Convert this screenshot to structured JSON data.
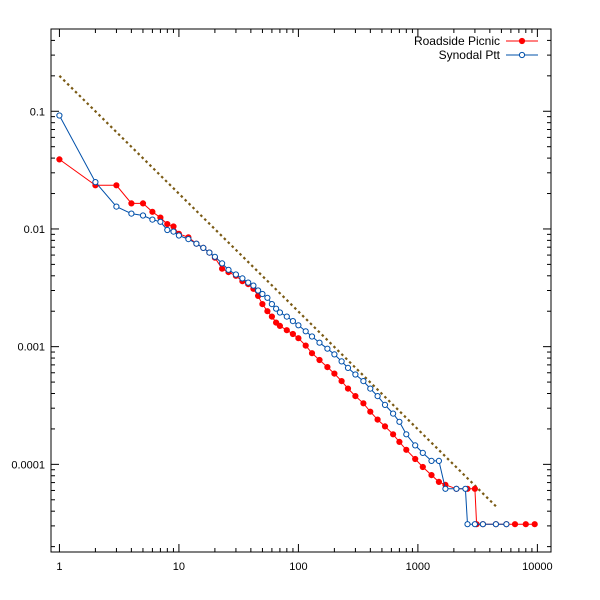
{
  "chart_data": {
    "type": "line",
    "x_scale": "log",
    "y_scale": "log",
    "xlim": [
      0.85,
      13000
    ],
    "ylim": [
      1.8e-05,
      0.5
    ],
    "x_ticks": [
      {
        "value": 1,
        "label": "1"
      },
      {
        "value": 10,
        "label": "10"
      },
      {
        "value": 100,
        "label": "100"
      },
      {
        "value": 1000,
        "label": "1000"
      },
      {
        "value": 10000,
        "label": "10000"
      }
    ],
    "y_ticks": [
      {
        "value": 0.0001,
        "label": "0.0001"
      },
      {
        "value": 0.001,
        "label": "0.001"
      },
      {
        "value": 0.01,
        "label": "0.01"
      },
      {
        "value": 0.1,
        "label": "0.1"
      }
    ],
    "legend": {
      "placement": "top-right"
    },
    "reference_line": {
      "style": "dotted",
      "color": "#7a5a14",
      "points": [
        [
          1,
          0.2
        ],
        [
          4500,
          4.4e-05
        ]
      ]
    },
    "series": [
      {
        "name": "Roadside Picnic",
        "color": "#ff0000",
        "marker": "filled-circle",
        "points": [
          [
            1,
            0.039
          ],
          [
            2,
            0.0235
          ],
          [
            3,
            0.0235
          ],
          [
            4,
            0.0165
          ],
          [
            5,
            0.0165
          ],
          [
            6,
            0.014
          ],
          [
            7,
            0.0125
          ],
          [
            8,
            0.011
          ],
          [
            9,
            0.0105
          ],
          [
            10,
            0.0091
          ],
          [
            12,
            0.0085
          ],
          [
            14,
            0.0075
          ],
          [
            16,
            0.0069
          ],
          [
            18,
            0.0063
          ],
          [
            20,
            0.0057
          ],
          [
            23,
            0.0046
          ],
          [
            26,
            0.0043
          ],
          [
            30,
            0.004
          ],
          [
            34,
            0.0036
          ],
          [
            38,
            0.0034
          ],
          [
            42,
            0.0031
          ],
          [
            46,
            0.0027
          ],
          [
            50,
            0.0023
          ],
          [
            55,
            0.002
          ],
          [
            60,
            0.0018
          ],
          [
            65,
            0.0016
          ],
          [
            70,
            0.0015
          ],
          [
            80,
            0.00138
          ],
          [
            90,
            0.00128
          ],
          [
            100,
            0.00118
          ],
          [
            115,
            0.00102
          ],
          [
            130,
            0.00088
          ],
          [
            150,
            0.00077
          ],
          [
            175,
            0.00067
          ],
          [
            200,
            0.00059
          ],
          [
            230,
            0.00051
          ],
          [
            260,
            0.00044
          ],
          [
            300,
            0.00038
          ],
          [
            350,
            0.00033
          ],
          [
            400,
            0.00028
          ],
          [
            460,
            0.00024
          ],
          [
            530,
            0.00021
          ],
          [
            620,
            0.00018
          ],
          [
            700,
            0.000155
          ],
          [
            800,
            0.000133
          ],
          [
            950,
            0.000111
          ],
          [
            1100,
            9.5e-05
          ],
          [
            1300,
            8.1e-05
          ],
          [
            1500,
            7.1e-05
          ],
          [
            1700,
            6.7e-05
          ],
          [
            2100,
            6.2e-05
          ],
          [
            2600,
            6.2e-05
          ],
          [
            3000,
            6.2e-05
          ],
          [
            3100,
            3.1e-05
          ],
          [
            3500,
            3.1e-05
          ],
          [
            4500,
            3.1e-05
          ],
          [
            5500,
            3.1e-05
          ],
          [
            6500,
            3.1e-05
          ],
          [
            8000,
            3.1e-05
          ],
          [
            9500,
            3.1e-05
          ]
        ]
      },
      {
        "name": "Synodal Ptt",
        "color": "#0050aa",
        "marker": "open-circle",
        "points": [
          [
            1,
            0.092
          ],
          [
            2,
            0.025
          ],
          [
            3,
            0.0155
          ],
          [
            4,
            0.0135
          ],
          [
            5,
            0.013
          ],
          [
            6,
            0.012
          ],
          [
            7,
            0.0115
          ],
          [
            8,
            0.0098
          ],
          [
            9,
            0.0095
          ],
          [
            10,
            0.0088
          ],
          [
            12,
            0.0082
          ],
          [
            14,
            0.0075
          ],
          [
            16,
            0.0069
          ],
          [
            18,
            0.0063
          ],
          [
            20,
            0.0058
          ],
          [
            23,
            0.0051
          ],
          [
            26,
            0.0045
          ],
          [
            30,
            0.0041
          ],
          [
            34,
            0.0038
          ],
          [
            38,
            0.0035
          ],
          [
            42,
            0.0033
          ],
          [
            46,
            0.003
          ],
          [
            50,
            0.0028
          ],
          [
            55,
            0.0026
          ],
          [
            60,
            0.0023
          ],
          [
            65,
            0.0021
          ],
          [
            70,
            0.00195
          ],
          [
            80,
            0.0018
          ],
          [
            90,
            0.00165
          ],
          [
            100,
            0.00152
          ],
          [
            115,
            0.00135
          ],
          [
            130,
            0.00122
          ],
          [
            150,
            0.00108
          ],
          [
            175,
            0.00096
          ],
          [
            200,
            0.00086
          ],
          [
            230,
            0.00075
          ],
          [
            260,
            0.00066
          ],
          [
            300,
            0.00058
          ],
          [
            350,
            0.00051
          ],
          [
            400,
            0.00044
          ],
          [
            460,
            0.00038
          ],
          [
            530,
            0.00032
          ],
          [
            620,
            0.00027
          ],
          [
            700,
            0.00023
          ],
          [
            800,
            0.00018
          ],
          [
            950,
            0.000145
          ],
          [
            1100,
            0.000125
          ],
          [
            1300,
            0.000107
          ],
          [
            1500,
            0.000107
          ],
          [
            1700,
            6.2e-05
          ],
          [
            2100,
            6.2e-05
          ],
          [
            2500,
            6.2e-05
          ],
          [
            2600,
            3.1e-05
          ],
          [
            3000,
            3.1e-05
          ],
          [
            3500,
            3.1e-05
          ],
          [
            4500,
            3.1e-05
          ],
          [
            5500,
            3.1e-05
          ]
        ]
      }
    ]
  }
}
